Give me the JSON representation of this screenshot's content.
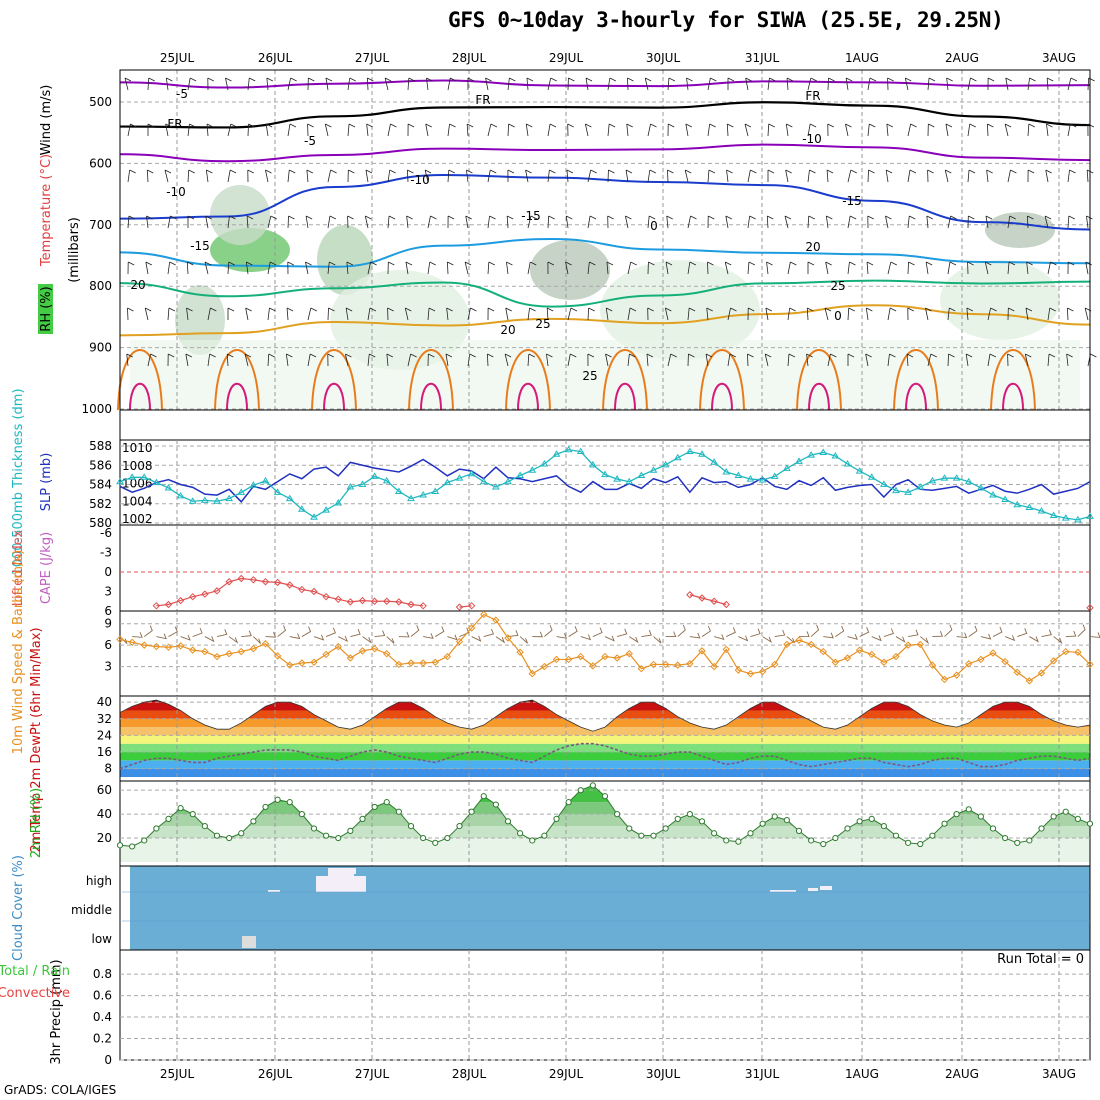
{
  "header": {
    "title": "GFS 0~10day 3-hourly for SIWA (25.5E, 29.25N)",
    "credit": "GrADS: COLA/IGES",
    "run_total": "Run Total = 0"
  },
  "chart_data": [
    {
      "panel": "upper-air",
      "type": "contour",
      "date_ticks": [
        "25JUL",
        "26JUL",
        "27JUL",
        "28JUL",
        "29JUL",
        "30JUL",
        "31JUL",
        "1AUG",
        "2AUG",
        "3AUG"
      ],
      "y_ticks": [
        "500",
        "600",
        "700",
        "800",
        "900",
        "1000"
      ],
      "ylabel_wind": "Wind (m/s)",
      "ylabel_temp": "Temperature (°C)",
      "ylabel_units": "(millibars)",
      "rh_legend": "RH (%)",
      "contour_labels": [
        "-5",
        "FR",
        "FR",
        "FR",
        "-5",
        "-10",
        "-10",
        "-10",
        "-15",
        "-15",
        "-15",
        "20",
        "20",
        "20",
        "25",
        "25",
        "0",
        "0",
        "25"
      ],
      "temperature_lines": [
        {
          "name": "-5",
          "color": "#8a00b8",
          "levels_mb": [
            468,
            470,
            472,
            471,
            470,
            469,
            471,
            472,
            468,
            470
          ]
        },
        {
          "name": "FR",
          "color": "#000000",
          "levels_mb": [
            540,
            535,
            525,
            515,
            505,
            504,
            505,
            510,
            518,
            535
          ]
        },
        {
          "name": "-5b",
          "color": "#8a00b8",
          "levels_mb": [
            585,
            590,
            588,
            582,
            575,
            572,
            574,
            578,
            585,
            592
          ]
        },
        {
          "name": "-10",
          "color": "#1a3ccc",
          "levels_mb": [
            690,
            680,
            640,
            625,
            620,
            625,
            640,
            665,
            690,
            705
          ]
        },
        {
          "name": "-15",
          "color": "#1c9be0",
          "levels_mb": [
            745,
            760,
            770,
            740,
            720,
            735,
            750,
            752,
            755,
            760
          ]
        },
        {
          "name": "20",
          "color": "#15b07a",
          "levels_mb": [
            795,
            810,
            805,
            800,
            830,
            810,
            800,
            795,
            790,
            790
          ]
        },
        {
          "name": "25",
          "color": "#e0a020",
          "levels_mb": [
            880,
            870,
            860,
            870,
            850,
            855,
            850,
            835,
            840,
            860
          ]
        }
      ]
    },
    {
      "panel": "thickness-slp",
      "type": "line",
      "y_ticks_left": [
        "580",
        "582",
        "584",
        "586",
        "588"
      ],
      "y_ticks_right": [
        "1002",
        "1004",
        "1006",
        "1008",
        "1010"
      ],
      "ylabel_left": "1000-500mb Thickness (dm)",
      "ylabel_right": "SLP (mb)",
      "series": [
        {
          "name": "thickness",
          "color": "#2030c0",
          "values": [
            583.8,
            583.2,
            583.6,
            584.2,
            584.5,
            584.0,
            583.7,
            583.0,
            582.9,
            583.5,
            582.2,
            583.8,
            583.5,
            584.3,
            585.1,
            584.6,
            585.6,
            585.8,
            584.9,
            586.3,
            586.0,
            585.7,
            585.5,
            585.3,
            585.9,
            586.6,
            585.8,
            584.9,
            585.6,
            585.4,
            584.6,
            585.8,
            584.7,
            584.6,
            584.3,
            584.6,
            584.9,
            583.8,
            583.2,
            584.3,
            583.5,
            583.5,
            584.1,
            583.6,
            584.6,
            584.2,
            584.8,
            583.2,
            584.7,
            584.2,
            584.3,
            583.7,
            584.0,
            584.7,
            583.8,
            583.5,
            584.4,
            583.9,
            584.7,
            583.4,
            583.7,
            583.9,
            584.0,
            582.7,
            584.0,
            584.5,
            583.5,
            583.4,
            583.6,
            583.8,
            583.1,
            583.5,
            583.9,
            583.3,
            583.1,
            583.5,
            584.0,
            583.0,
            583.3,
            583.6,
            584.3
          ]
        },
        {
          "name": "slp",
          "color": "#1fb8c0",
          "values": [
            1006.2,
            1006.7,
            1006.7,
            1006.1,
            1005.5,
            1004.6,
            1004.0,
            1004.1,
            1004.0,
            1004.3,
            1005.0,
            1005.8,
            1006.3,
            1005.0,
            1004.3,
            1003.1,
            1002.2,
            1003.0,
            1003.8,
            1005.6,
            1005.9,
            1006.8,
            1006.3,
            1005.1,
            1004.3,
            1004.7,
            1005.1,
            1006.1,
            1006.6,
            1007.1,
            1006.2,
            1005.6,
            1006.2,
            1006.9,
            1007.5,
            1008.2,
            1009.3,
            1009.8,
            1009.6,
            1008.1,
            1007.0,
            1006.5,
            1006.2,
            1006.9,
            1007.5,
            1008.1,
            1008.9,
            1009.6,
            1009.3,
            1008.4,
            1007.3,
            1006.9,
            1006.5,
            1006.4,
            1006.8,
            1007.7,
            1008.5,
            1009.2,
            1009.5,
            1009.1,
            1008.2,
            1007.4,
            1006.7,
            1005.9,
            1005.2,
            1005.0,
            1005.6,
            1006.3,
            1006.6,
            1006.6,
            1006.2,
            1005.5,
            1004.7,
            1004.2,
            1003.6,
            1003.3,
            1002.9,
            1002.4,
            1002.1,
            1001.9,
            1002.3
          ]
        }
      ]
    },
    {
      "panel": "lifted-index-cape",
      "type": "line",
      "y_ticks": [
        "-6",
        "-3",
        "0",
        "3",
        "6"
      ],
      "ylabel_left": "Lifted Index",
      "ylabel_right": "CAPE (J/kg)",
      "series": [
        {
          "name": "lifted_index",
          "color": "#e05050",
          "values": [
            null,
            null,
            null,
            5.2,
            5.0,
            4.4,
            3.8,
            3.4,
            2.9,
            1.5,
            1.0,
            1.2,
            1.5,
            1.6,
            2.0,
            2.7,
            3.0,
            3.8,
            4.2,
            4.6,
            4.4,
            4.5,
            4.5,
            4.6,
            5.0,
            5.2,
            null,
            null,
            5.4,
            5.2,
            null,
            null,
            null,
            null,
            null,
            null,
            null,
            null,
            null,
            null,
            null,
            null,
            null,
            null,
            null,
            null,
            null,
            3.5,
            4.0,
            4.5,
            5.0,
            null,
            null,
            null,
            null,
            null,
            null,
            null,
            null,
            null,
            null,
            null,
            null,
            null,
            null,
            null,
            null,
            null,
            null,
            null,
            null,
            null,
            null,
            null,
            null,
            null,
            null,
            null,
            null,
            null,
            5.5
          ]
        }
      ]
    },
    {
      "panel": "wind-10m",
      "type": "line",
      "y_ticks": [
        "3",
        "6",
        "9"
      ],
      "ylabel": "10m Wind Speed & Barbs (m/s)",
      "series": [
        {
          "name": "speed",
          "color": "#e89020",
          "values": [
            6.8,
            6.4,
            6.0,
            5.8,
            5.7,
            5.9,
            5.3,
            5.1,
            4.4,
            4.8,
            5.1,
            5.5,
            6.2,
            4.5,
            3.2,
            3.5,
            3.6,
            4.7,
            5.8,
            4.2,
            5.2,
            5.5,
            4.8,
            3.3,
            3.5,
            3.5,
            3.6,
            4.4,
            6.5,
            8.4,
            10.3,
            9.5,
            7.0,
            5.0,
            2.0,
            3.0,
            4.0,
            4.0,
            4.4,
            3.1,
            4.4,
            4.2,
            4.8,
            2.7,
            3.3,
            3.3,
            3.2,
            3.4,
            5.2,
            3.0,
            5.4,
            2.5,
            2.0,
            2.3,
            3.3,
            6.1,
            6.7,
            6.1,
            5.1,
            3.6,
            4.2,
            5.3,
            4.7,
            3.6,
            4.4,
            6.0,
            6.1,
            3.2,
            1.2,
            1.8,
            3.4,
            4.0,
            4.9,
            3.7,
            2.2,
            1.0,
            2.1,
            3.8,
            5.1,
            5.0,
            3.3
          ]
        }
      ]
    },
    {
      "panel": "temp-2m",
      "type": "area",
      "y_ticks": [
        "8",
        "16",
        "24",
        "32",
        "40"
      ],
      "ylabel": "2m Temp 2m DewPt (6hr Min/Max)",
      "series": [
        {
          "name": "temperature",
          "color": "#8b0000",
          "values": [
            35,
            38,
            40,
            41,
            39,
            36,
            32,
            29,
            27,
            27,
            30,
            34,
            38,
            40,
            40,
            38,
            34,
            31,
            28,
            27,
            29,
            33,
            37,
            40,
            40,
            37,
            33,
            30,
            28,
            27,
            29,
            33,
            37,
            40,
            41,
            38,
            34,
            31,
            28,
            26,
            28,
            33,
            37,
            40,
            40,
            37,
            33,
            30,
            28,
            27,
            29,
            33,
            37,
            40,
            40,
            37,
            34,
            31,
            28,
            27,
            29,
            33,
            37,
            40,
            40,
            38,
            34,
            31,
            29,
            28,
            30,
            34,
            38,
            40,
            40,
            38,
            34,
            31,
            29,
            28,
            29
          ]
        },
        {
          "name": "dewpoint",
          "color": "#7a5a7a",
          "values": [
            8,
            10,
            12,
            13,
            13,
            12,
            11,
            11,
            13,
            14,
            15,
            16,
            17,
            17,
            17,
            16,
            14,
            13,
            12,
            14,
            16,
            17,
            16,
            14,
            13,
            12,
            11,
            13,
            15,
            16,
            16,
            15,
            13,
            12,
            11,
            14,
            17,
            19,
            20,
            20,
            19,
            17,
            15,
            14,
            14,
            15,
            16,
            16,
            14,
            12,
            10,
            11,
            13,
            14,
            14,
            12,
            10,
            9,
            10,
            11,
            12,
            13,
            13,
            11,
            10,
            9,
            10,
            12,
            13,
            13,
            11,
            9,
            9,
            10,
            12,
            13,
            14,
            14,
            13,
            12,
            13
          ]
        }
      ]
    },
    {
      "panel": "rh-2m",
      "type": "area",
      "y_ticks": [
        "20",
        "40",
        "60"
      ],
      "ylabel": "2m RH (%)",
      "series": [
        {
          "name": "rh",
          "color": "#2e8b2e",
          "values": [
            14,
            13,
            18,
            28,
            36,
            45,
            40,
            30,
            22,
            20,
            24,
            34,
            46,
            52,
            50,
            40,
            28,
            22,
            20,
            26,
            36,
            46,
            50,
            42,
            30,
            20,
            16,
            20,
            30,
            42,
            55,
            48,
            34,
            24,
            18,
            22,
            36,
            50,
            60,
            64,
            55,
            40,
            28,
            22,
            22,
            28,
            36,
            40,
            34,
            24,
            18,
            17,
            24,
            32,
            38,
            35,
            26,
            18,
            15,
            20,
            28,
            34,
            36,
            30,
            22,
            16,
            15,
            22,
            32,
            40,
            44,
            38,
            28,
            20,
            16,
            18,
            28,
            38,
            42,
            36,
            32
          ]
        }
      ]
    },
    {
      "panel": "cloud-cover",
      "type": "heatmap",
      "y_ticks": [
        "high",
        "middle",
        "low"
      ],
      "ylabel": "Cloud Cover (%)"
    },
    {
      "panel": "precip",
      "type": "bar",
      "y_ticks": [
        "0",
        "0.2",
        "0.4",
        "0.6",
        "0.8"
      ],
      "ylabel_left": "Total / Rain",
      "ylabel_right": "Convective",
      "ylabel_axis": "3hr Precip (mm)",
      "values": []
    }
  ]
}
